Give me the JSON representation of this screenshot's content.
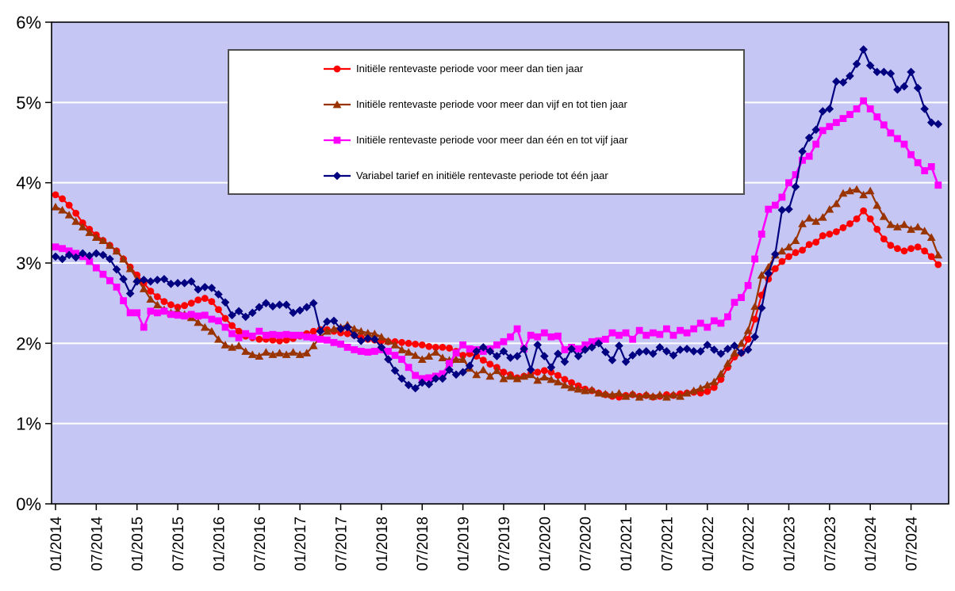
{
  "chart_data": {
    "type": "line",
    "title": "",
    "xlabel": "",
    "ylabel": "",
    "ylim": [
      0,
      6
    ],
    "grid": "horizontal-white-gridlines",
    "plot_background": "#C5C6F3",
    "axis_color": "#000000",
    "legend_position": "top-center-inside",
    "x_unit": "month",
    "x_start": "01/2014",
    "x_end": "11/2024",
    "x_tick_interval_months": 6,
    "x_tick_labels": [
      "01/2014",
      "07/2014",
      "01/2015",
      "07/2015",
      "01/2016",
      "07/2016",
      "01/2017",
      "07/2017",
      "01/2018",
      "07/2018",
      "01/2019",
      "07/2019",
      "01/2020",
      "07/2020",
      "01/2021",
      "07/2021",
      "01/2022",
      "07/2022",
      "01/2023",
      "07/2023",
      "01/2024",
      "07/2024"
    ],
    "y_tick_labels": [
      "0%",
      "1%",
      "2%",
      "3%",
      "4%",
      "5%",
      "6%"
    ],
    "series": [
      {
        "name": "Initiële rentevaste periode voor meer dan tien jaar",
        "color": "#FF0000",
        "marker": "circle",
        "values": [
          3.85,
          3.8,
          3.72,
          3.62,
          3.5,
          3.42,
          3.35,
          3.28,
          3.22,
          3.15,
          3.05,
          2.95,
          2.85,
          2.75,
          2.65,
          2.58,
          2.52,
          2.48,
          2.45,
          2.47,
          2.5,
          2.54,
          2.56,
          2.52,
          2.42,
          2.31,
          2.22,
          2.15,
          2.09,
          2.07,
          2.05,
          2.05,
          2.04,
          2.03,
          2.04,
          2.06,
          2.09,
          2.12,
          2.15,
          2.17,
          2.17,
          2.15,
          2.13,
          2.12,
          2.1,
          2.07,
          2.05,
          2.04,
          2.03,
          2.02,
          2.02,
          2.01,
          2.0,
          1.99,
          1.98,
          1.96,
          1.95,
          1.95,
          1.94,
          1.9,
          1.85,
          1.87,
          1.84,
          1.79,
          1.74,
          1.7,
          1.64,
          1.61,
          1.57,
          1.59,
          1.62,
          1.64,
          1.66,
          1.64,
          1.6,
          1.55,
          1.51,
          1.47,
          1.43,
          1.41,
          1.38,
          1.36,
          1.34,
          1.33,
          1.35,
          1.36,
          1.34,
          1.35,
          1.33,
          1.34,
          1.36,
          1.35,
          1.37,
          1.38,
          1.39,
          1.38,
          1.4,
          1.45,
          1.55,
          1.7,
          1.83,
          1.88,
          2.05,
          2.3,
          2.6,
          2.8,
          2.93,
          3.02,
          3.08,
          3.13,
          3.16,
          3.23,
          3.26,
          3.34,
          3.36,
          3.39,
          3.44,
          3.49,
          3.55,
          3.65,
          3.55,
          3.42,
          3.3,
          3.22,
          3.18,
          3.15,
          3.18,
          3.2,
          3.15,
          3.08,
          2.98
        ]
      },
      {
        "name": "Initiële rentevaste periode voor meer dan vijf en tot tien jaar",
        "color": "#993300",
        "marker": "triangle",
        "values": [
          3.7,
          3.66,
          3.6,
          3.52,
          3.45,
          3.38,
          3.32,
          3.28,
          3.22,
          3.15,
          3.05,
          2.93,
          2.8,
          2.68,
          2.55,
          2.48,
          2.42,
          2.38,
          2.4,
          2.36,
          2.32,
          2.26,
          2.2,
          2.15,
          2.05,
          1.98,
          1.95,
          1.97,
          1.9,
          1.86,
          1.84,
          1.89,
          1.86,
          1.88,
          1.86,
          1.89,
          1.86,
          1.88,
          1.97,
          2.08,
          2.15,
          2.18,
          2.2,
          2.23,
          2.18,
          2.15,
          2.13,
          2.12,
          2.08,
          2.03,
          1.98,
          1.92,
          1.89,
          1.85,
          1.8,
          1.84,
          1.89,
          1.82,
          1.79,
          1.8,
          1.8,
          1.69,
          1.61,
          1.67,
          1.59,
          1.66,
          1.56,
          1.59,
          1.56,
          1.59,
          1.61,
          1.54,
          1.58,
          1.55,
          1.52,
          1.48,
          1.45,
          1.43,
          1.41,
          1.42,
          1.38,
          1.37,
          1.36,
          1.38,
          1.34,
          1.37,
          1.33,
          1.36,
          1.34,
          1.36,
          1.33,
          1.36,
          1.34,
          1.38,
          1.41,
          1.44,
          1.48,
          1.52,
          1.62,
          1.75,
          1.88,
          2.0,
          2.16,
          2.46,
          2.85,
          2.95,
          3.1,
          3.15,
          3.2,
          3.28,
          3.49,
          3.56,
          3.52,
          3.57,
          3.67,
          3.74,
          3.87,
          3.9,
          3.92,
          3.85,
          3.9,
          3.72,
          3.58,
          3.48,
          3.45,
          3.48,
          3.42,
          3.45,
          3.4,
          3.32,
          3.1
        ]
      },
      {
        "name": "Initiële rentevaste periode voor meer dan één en tot vijf jaar",
        "color": "#FF00FF",
        "marker": "square",
        "values": [
          3.2,
          3.18,
          3.15,
          3.12,
          3.08,
          3.02,
          2.94,
          2.86,
          2.78,
          2.7,
          2.53,
          2.38,
          2.38,
          2.2,
          2.4,
          2.38,
          2.4,
          2.36,
          2.35,
          2.34,
          2.36,
          2.34,
          2.35,
          2.3,
          2.28,
          2.2,
          2.12,
          2.07,
          2.12,
          2.09,
          2.15,
          2.1,
          2.11,
          2.1,
          2.11,
          2.1,
          2.1,
          2.08,
          2.07,
          2.05,
          2.04,
          2.01,
          1.99,
          1.95,
          1.92,
          1.9,
          1.89,
          1.9,
          1.92,
          1.9,
          1.85,
          1.8,
          1.7,
          1.6,
          1.56,
          1.57,
          1.59,
          1.62,
          1.75,
          1.88,
          1.98,
          1.93,
          1.92,
          1.9,
          1.93,
          1.98,
          2.02,
          2.08,
          2.18,
          1.93,
          2.1,
          2.08,
          2.13,
          2.08,
          2.09,
          1.92,
          1.95,
          1.93,
          1.98,
          2.02,
          2.03,
          2.05,
          2.13,
          2.1,
          2.13,
          2.05,
          2.16,
          2.1,
          2.13,
          2.11,
          2.18,
          2.1,
          2.16,
          2.13,
          2.18,
          2.25,
          2.2,
          2.28,
          2.25,
          2.33,
          2.51,
          2.57,
          2.72,
          3.05,
          3.36,
          3.67,
          3.72,
          3.82,
          4.0,
          4.1,
          4.28,
          4.33,
          4.48,
          4.65,
          4.7,
          4.75,
          4.8,
          4.85,
          4.92,
          5.02,
          4.92,
          4.82,
          4.72,
          4.62,
          4.55,
          4.48,
          4.35,
          4.25,
          4.15,
          4.2,
          3.97
        ]
      },
      {
        "name": "Variabel tarief en initiële rentevaste periode tot één jaar",
        "color": "#000080",
        "marker": "diamond",
        "values": [
          3.08,
          3.05,
          3.1,
          3.07,
          3.12,
          3.09,
          3.12,
          3.1,
          3.05,
          2.92,
          2.8,
          2.62,
          2.77,
          2.79,
          2.77,
          2.79,
          2.8,
          2.74,
          2.75,
          2.75,
          2.77,
          2.67,
          2.7,
          2.69,
          2.61,
          2.51,
          2.35,
          2.4,
          2.33,
          2.38,
          2.45,
          2.5,
          2.46,
          2.48,
          2.48,
          2.38,
          2.41,
          2.45,
          2.5,
          2.15,
          2.27,
          2.28,
          2.18,
          2.2,
          2.1,
          2.03,
          2.06,
          2.05,
          1.95,
          1.8,
          1.66,
          1.56,
          1.48,
          1.44,
          1.51,
          1.49,
          1.56,
          1.56,
          1.67,
          1.61,
          1.64,
          1.72,
          1.9,
          1.95,
          1.9,
          1.84,
          1.9,
          1.82,
          1.84,
          1.93,
          1.67,
          1.98,
          1.84,
          1.7,
          1.87,
          1.77,
          1.93,
          1.84,
          1.92,
          1.95,
          2.0,
          1.89,
          1.79,
          1.97,
          1.77,
          1.85,
          1.89,
          1.9,
          1.87,
          1.95,
          1.9,
          1.85,
          1.92,
          1.93,
          1.9,
          1.9,
          1.98,
          1.92,
          1.87,
          1.93,
          1.97,
          1.88,
          1.92,
          2.08,
          2.44,
          2.87,
          3.11,
          3.66,
          3.67,
          3.95,
          4.39,
          4.56,
          4.66,
          4.89,
          4.92,
          5.26,
          5.25,
          5.33,
          5.48,
          5.66,
          5.46,
          5.38,
          5.38,
          5.36,
          5.16,
          5.2,
          5.38,
          5.18,
          4.92,
          4.75,
          4.73
        ]
      }
    ]
  }
}
